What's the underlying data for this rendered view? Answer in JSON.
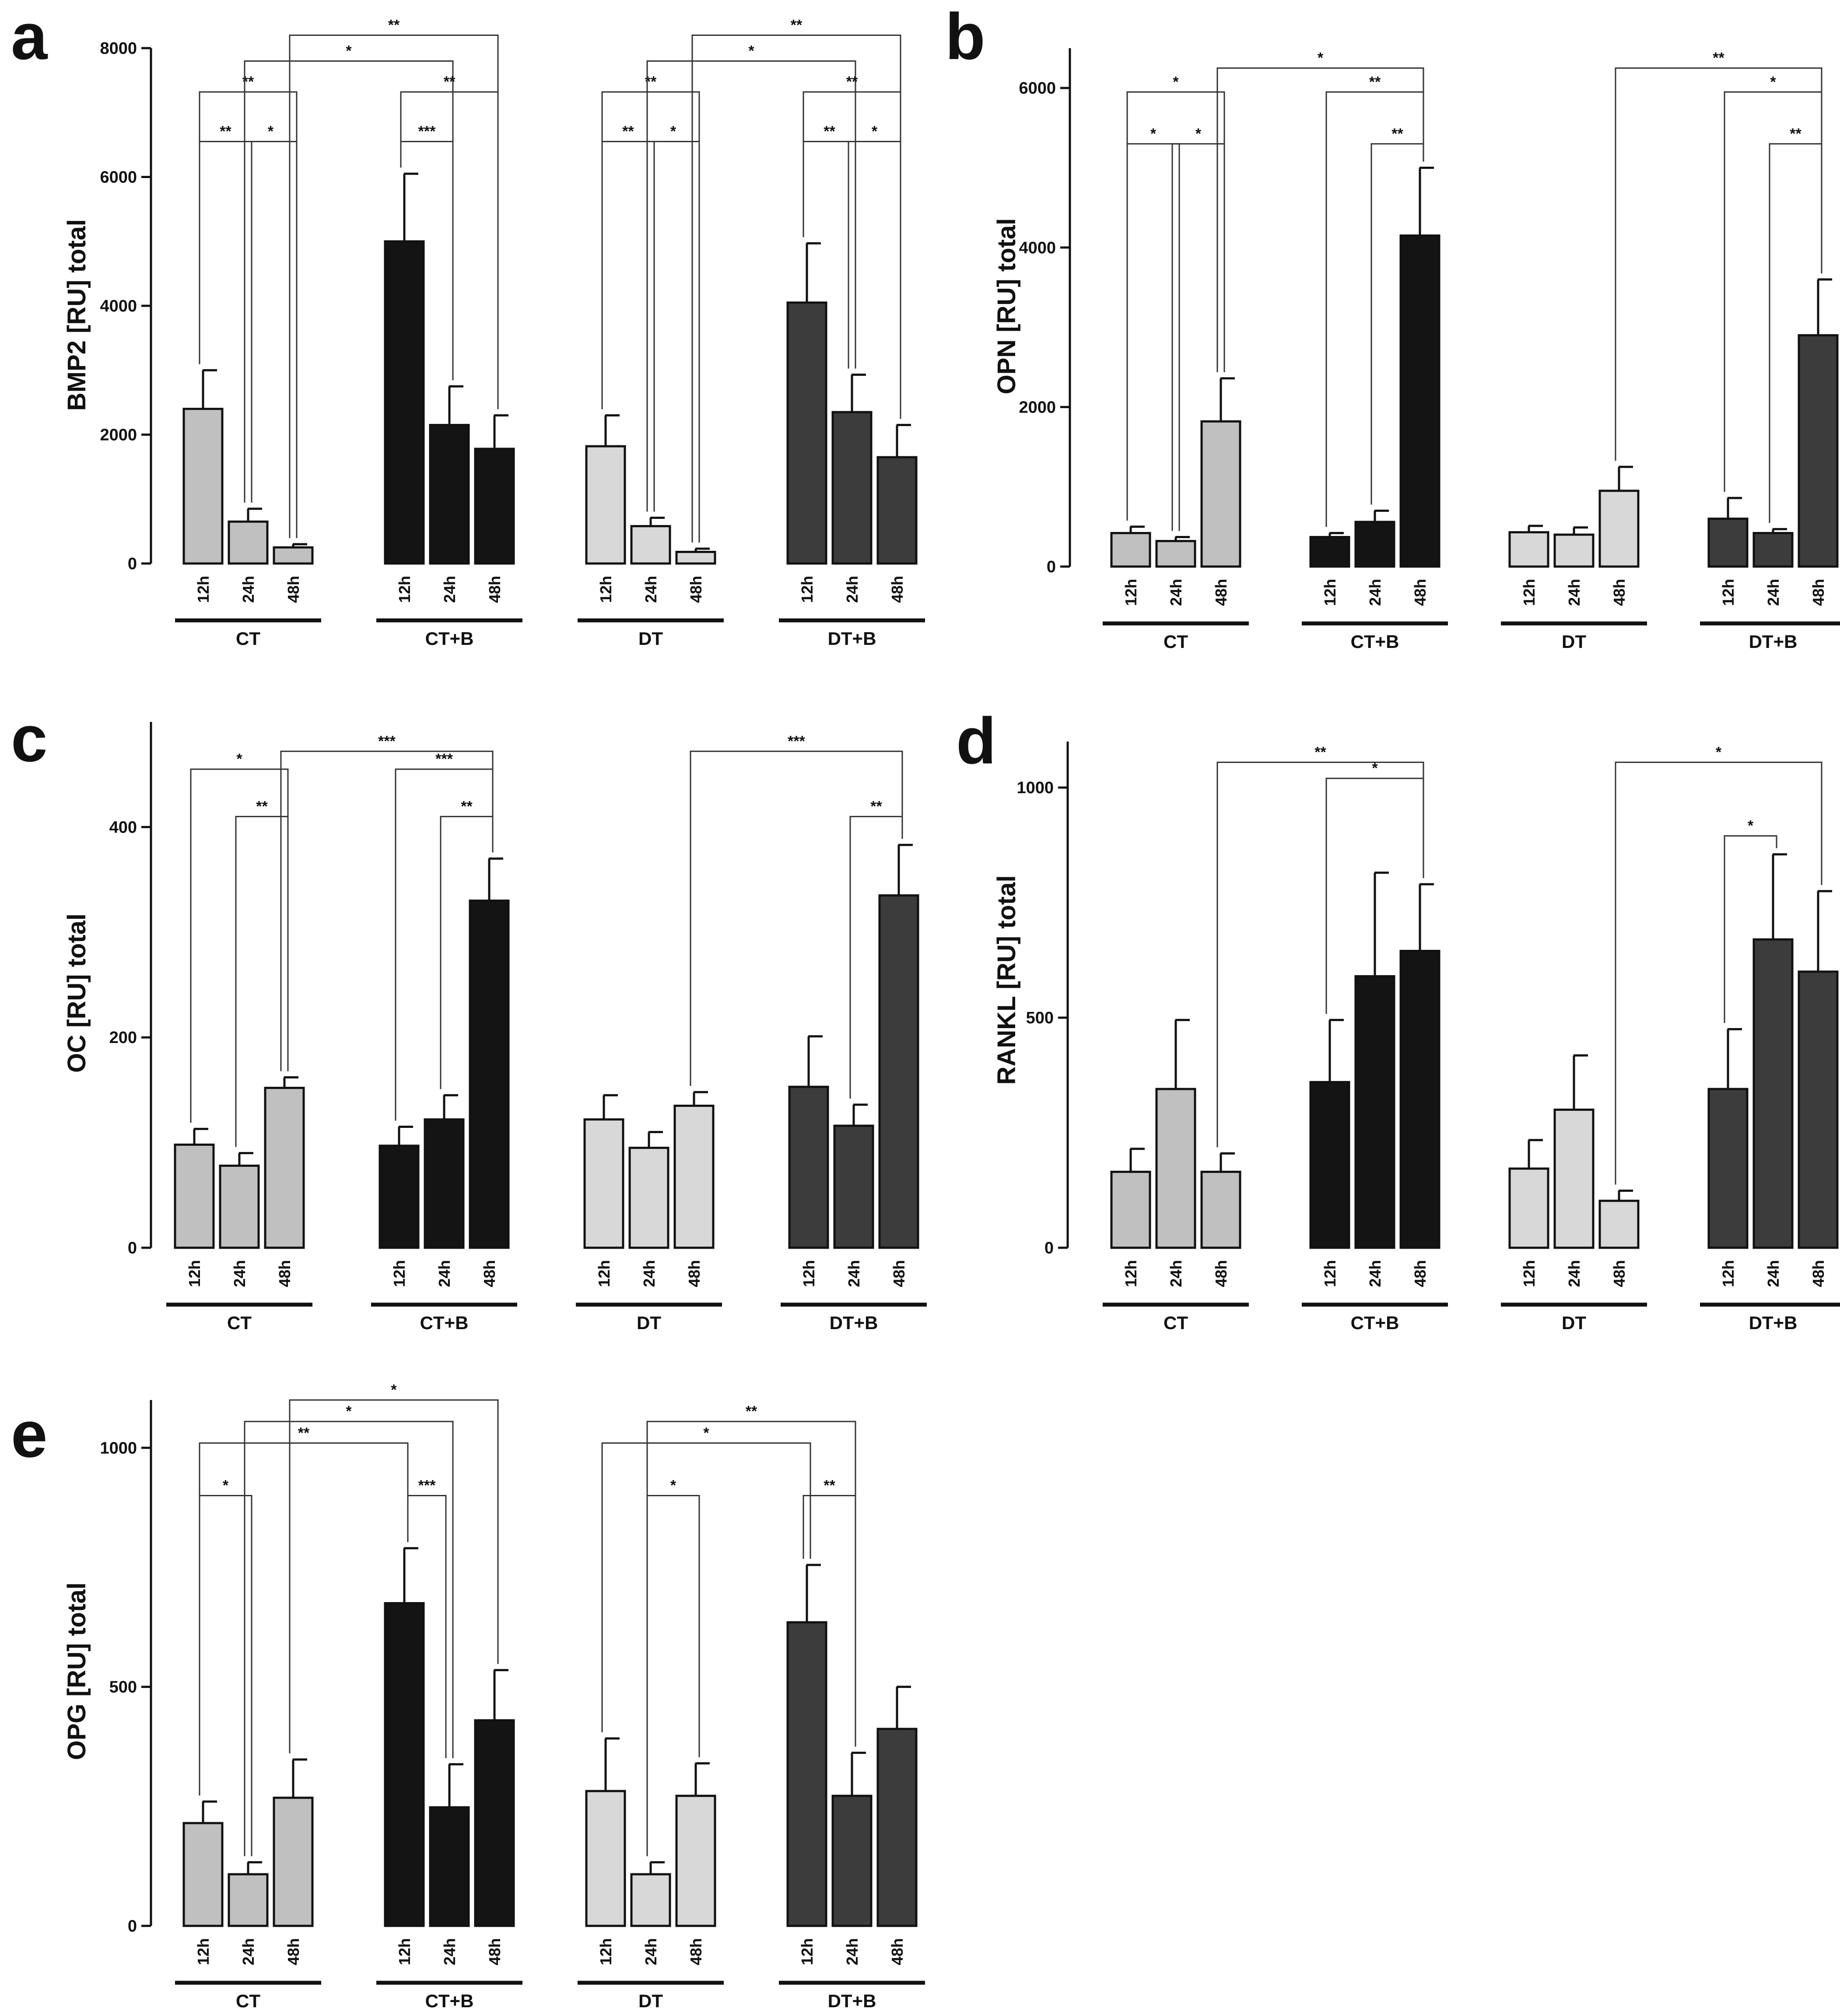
{
  "figure": {
    "time_points": [
      "12h",
      "24h",
      "48h"
    ],
    "groups": [
      "CT",
      "CT+B",
      "DT",
      "DT+B"
    ],
    "group_colors": {
      "CT": "#c0c0c0",
      "CT+B": "#141414",
      "DT": "#d8d8d8",
      "DT+B": "#3c3c3c"
    }
  },
  "chart_data": [
    {
      "id": "a",
      "panel": "a",
      "type": "bar",
      "ylabel": "BMP2 [RU] total",
      "ylim": [
        0,
        8000
      ],
      "yticks": [
        0,
        2000,
        4000,
        6000,
        8000
      ],
      "series": [
        {
          "group": "CT",
          "values": [
            2400,
            650,
            250
          ],
          "errors": [
            600,
            200,
            50
          ]
        },
        {
          "group": "CT+B",
          "values": [
            5000,
            2150,
            1780
          ],
          "errors": [
            1050,
            600,
            520
          ]
        },
        {
          "group": "DT",
          "values": [
            1820,
            580,
            180
          ],
          "errors": [
            480,
            130,
            50
          ]
        },
        {
          "group": "DT+B",
          "values": [
            4050,
            2350,
            1650
          ],
          "errors": [
            920,
            580,
            500
          ]
        }
      ],
      "significance": [
        {
          "from": [
            0,
            0
          ],
          "to": [
            0,
            1
          ],
          "label": "**",
          "y": 6550
        },
        {
          "from": [
            0,
            1
          ],
          "to": [
            0,
            2
          ],
          "label": "*",
          "y": 6550
        },
        {
          "from": [
            0,
            0
          ],
          "to": [
            0,
            2
          ],
          "label": "**",
          "y": 7320
        },
        {
          "from": [
            0,
            1
          ],
          "to": [
            1,
            1
          ],
          "label": "*",
          "y": 7800
        },
        {
          "from": [
            0,
            2
          ],
          "to": [
            1,
            2
          ],
          "label": "**",
          "y": 8200
        },
        {
          "from": [
            1,
            0
          ],
          "to": [
            1,
            1
          ],
          "label": "***",
          "y": 6550
        },
        {
          "from": [
            1,
            0
          ],
          "to": [
            1,
            2
          ],
          "label": "**",
          "y": 7320
        },
        {
          "from": [
            2,
            0
          ],
          "to": [
            2,
            1
          ],
          "label": "**",
          "y": 6550
        },
        {
          "from": [
            2,
            1
          ],
          "to": [
            2,
            2
          ],
          "label": "*",
          "y": 6550
        },
        {
          "from": [
            2,
            0
          ],
          "to": [
            2,
            2
          ],
          "label": "**",
          "y": 7320
        },
        {
          "from": [
            2,
            1
          ],
          "to": [
            3,
            1
          ],
          "label": "*",
          "y": 7800
        },
        {
          "from": [
            2,
            2
          ],
          "to": [
            3,
            2
          ],
          "label": "**",
          "y": 8200
        },
        {
          "from": [
            3,
            0
          ],
          "to": [
            3,
            1
          ],
          "label": "**",
          "y": 6550
        },
        {
          "from": [
            3,
            1
          ],
          "to": [
            3,
            2
          ],
          "label": "*",
          "y": 6550
        },
        {
          "from": [
            3,
            0
          ],
          "to": [
            3,
            2
          ],
          "label": "**",
          "y": 7320
        }
      ]
    },
    {
      "id": "b",
      "panel": "b",
      "type": "bar",
      "ylabel": "OPN [RU] total",
      "ylim": [
        0,
        6500
      ],
      "yticks": [
        0,
        2000,
        4000,
        6000
      ],
      "series": [
        {
          "group": "CT",
          "values": [
            420,
            320,
            1820
          ],
          "errors": [
            80,
            50,
            540
          ]
        },
        {
          "group": "CT+B",
          "values": [
            370,
            560,
            4150
          ],
          "errors": [
            50,
            140,
            850
          ]
        },
        {
          "group": "DT",
          "values": [
            430,
            400,
            950
          ],
          "errors": [
            80,
            90,
            300
          ]
        },
        {
          "group": "DT+B",
          "values": [
            600,
            420,
            2900
          ],
          "errors": [
            260,
            50,
            700
          ]
        }
      ],
      "significance": [
        {
          "from": [
            0,
            0
          ],
          "to": [
            0,
            1
          ],
          "label": "*",
          "y": 5300
        },
        {
          "from": [
            0,
            1
          ],
          "to": [
            0,
            2
          ],
          "label": "*",
          "y": 5300
        },
        {
          "from": [
            0,
            0
          ],
          "to": [
            0,
            2
          ],
          "label": "*",
          "y": 5950
        },
        {
          "from": [
            0,
            2
          ],
          "to": [
            1,
            2
          ],
          "label": "*",
          "y": 6250
        },
        {
          "from": [
            1,
            1
          ],
          "to": [
            1,
            2
          ],
          "label": "**",
          "y": 5300
        },
        {
          "from": [
            1,
            0
          ],
          "to": [
            1,
            2
          ],
          "label": "**",
          "y": 5950
        },
        {
          "from": [
            2,
            2
          ],
          "to": [
            3,
            2
          ],
          "label": "**",
          "y": 6250
        },
        {
          "from": [
            3,
            0
          ],
          "to": [
            3,
            2
          ],
          "label": "*",
          "y": 5950
        },
        {
          "from": [
            3,
            1
          ],
          "to": [
            3,
            2
          ],
          "label": "**",
          "y": 5300
        }
      ]
    },
    {
      "id": "c",
      "panel": "c",
      "type": "bar",
      "ylabel": "OC [RU] total",
      "ylim": [
        0,
        500
      ],
      "yticks": [
        0,
        200,
        400
      ],
      "series": [
        {
          "group": "CT",
          "values": [
            98,
            78,
            152
          ],
          "errors": [
            15,
            12,
            10
          ]
        },
        {
          "group": "CT+B",
          "values": [
            97,
            122,
            330
          ],
          "errors": [
            18,
            23,
            40
          ]
        },
        {
          "group": "DT",
          "values": [
            122,
            95,
            135
          ],
          "errors": [
            23,
            15,
            13
          ]
        },
        {
          "group": "DT+B",
          "values": [
            153,
            116,
            335
          ],
          "errors": [
            48,
            20,
            48
          ]
        }
      ],
      "significance": [
        {
          "from": [
            0,
            0
          ],
          "to": [
            0,
            2
          ],
          "label": "*",
          "y": 455
        },
        {
          "from": [
            0,
            1
          ],
          "to": [
            0,
            2
          ],
          "label": "**",
          "y": 410
        },
        {
          "from": [
            0,
            2
          ],
          "to": [
            1,
            2
          ],
          "label": "***",
          "y": 472
        },
        {
          "from": [
            1,
            0
          ],
          "to": [
            1,
            2
          ],
          "label": "***",
          "y": 455
        },
        {
          "from": [
            1,
            1
          ],
          "to": [
            1,
            2
          ],
          "label": "**",
          "y": 410
        },
        {
          "from": [
            2,
            2
          ],
          "to": [
            3,
            2
          ],
          "label": "***",
          "y": 472
        },
        {
          "from": [
            3,
            1
          ],
          "to": [
            3,
            2
          ],
          "label": "**",
          "y": 410
        }
      ]
    },
    {
      "id": "d",
      "panel": "d",
      "type": "bar",
      "ylabel": "RANKL [RU] total",
      "ylim": [
        0,
        1100
      ],
      "yticks": [
        0,
        500,
        1000
      ],
      "series": [
        {
          "group": "CT",
          "values": [
            165,
            345,
            165
          ],
          "errors": [
            50,
            150,
            40
          ]
        },
        {
          "group": "CT+B",
          "values": [
            360,
            590,
            645
          ],
          "errors": [
            135,
            225,
            145
          ]
        },
        {
          "group": "DT",
          "values": [
            172,
            300,
            102
          ],
          "errors": [
            62,
            118,
            22
          ]
        },
        {
          "group": "DT+B",
          "values": [
            345,
            670,
            600
          ],
          "errors": [
            130,
            185,
            175
          ]
        }
      ],
      "significance": [
        {
          "from": [
            0,
            2
          ],
          "to": [
            1,
            2
          ],
          "label": "**",
          "y": 1055
        },
        {
          "from": [
            1,
            0
          ],
          "to": [
            1,
            2
          ],
          "label": "*",
          "y": 1020
        },
        {
          "from": [
            2,
            2
          ],
          "to": [
            3,
            2
          ],
          "label": "*",
          "y": 1055
        },
        {
          "from": [
            3,
            0
          ],
          "to": [
            3,
            1
          ],
          "label": "*",
          "y": 895
        }
      ]
    },
    {
      "id": "e",
      "panel": "e",
      "type": "bar",
      "ylabel": "OPG [RU] total",
      "ylim": [
        0,
        1100
      ],
      "yticks": [
        0,
        500,
        1000
      ],
      "series": [
        {
          "group": "CT",
          "values": [
            215,
            108,
            268
          ],
          "errors": [
            45,
            25,
            80
          ]
        },
        {
          "group": "CT+B",
          "values": [
            675,
            248,
            430
          ],
          "errors": [
            115,
            90,
            105
          ]
        },
        {
          "group": "DT",
          "values": [
            282,
            108,
            272
          ],
          "errors": [
            110,
            25,
            68
          ]
        },
        {
          "group": "DT+B",
          "values": [
            635,
            272,
            412
          ],
          "errors": [
            120,
            90,
            88
          ]
        }
      ],
      "significance": [
        {
          "from": [
            0,
            0
          ],
          "to": [
            0,
            1
          ],
          "label": "*",
          "y": 900
        },
        {
          "from": [
            0,
            0
          ],
          "to": [
            1,
            0
          ],
          "label": "**",
          "y": 1010
        },
        {
          "from": [
            0,
            1
          ],
          "to": [
            1,
            1
          ],
          "label": "*",
          "y": 1055
        },
        {
          "from": [
            0,
            2
          ],
          "to": [
            1,
            2
          ],
          "label": "*",
          "y": 1100
        },
        {
          "from": [
            1,
            1
          ],
          "to": [
            1,
            0
          ],
          "label": "***",
          "y": 900
        },
        {
          "from": [
            2,
            0
          ],
          "to": [
            3,
            0
          ],
          "label": "*",
          "y": 1010
        },
        {
          "from": [
            2,
            1
          ],
          "to": [
            2,
            2
          ],
          "label": "*",
          "y": 900
        },
        {
          "from": [
            2,
            1
          ],
          "to": [
            3,
            1
          ],
          "label": "**",
          "y": 1055
        },
        {
          "from": [
            3,
            0
          ],
          "to": [
            3,
            1
          ],
          "label": "**",
          "y": 900
        }
      ]
    }
  ]
}
